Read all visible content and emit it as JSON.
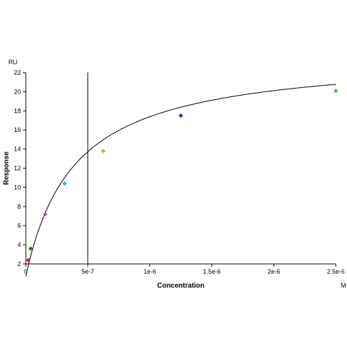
{
  "chart_data": {
    "type": "scatter",
    "xlabel": "Concentration",
    "ylabel": "Response",
    "x_unit": "M",
    "y_unit": "RU",
    "xlim": [
      0,
      2.5e-06
    ],
    "ylim": [
      2,
      22
    ],
    "x_ticks": [
      {
        "value": 0,
        "label": "0"
      },
      {
        "value": 5e-07,
        "label": "5e-7"
      },
      {
        "value": 1e-06,
        "label": "1e-6"
      },
      {
        "value": 1.5e-06,
        "label": "1.5e-6"
      },
      {
        "value": 2e-06,
        "label": "2e-6"
      },
      {
        "value": 2.5e-06,
        "label": "2.5e-6"
      }
    ],
    "y_ticks": [
      {
        "value": 2,
        "label": "2"
      },
      {
        "value": 4,
        "label": "4"
      },
      {
        "value": 6,
        "label": "6"
      },
      {
        "value": 8,
        "label": "8"
      },
      {
        "value": 10,
        "label": "10"
      },
      {
        "value": 12,
        "label": "12"
      },
      {
        "value": 14,
        "label": "14"
      },
      {
        "value": 16,
        "label": "16"
      },
      {
        "value": 18,
        "label": "18"
      },
      {
        "value": 20,
        "label": "20"
      },
      {
        "value": 22,
        "label": "22"
      }
    ],
    "points": [
      {
        "x": 1.95e-08,
        "y": 2.4,
        "color": "#e0201b"
      },
      {
        "x": 3.9e-08,
        "y": 3.6,
        "color": "#1a7a1a"
      },
      {
        "x": 1.5625e-07,
        "y": 7.2,
        "color": "#d63fd6"
      },
      {
        "x": 3.125e-07,
        "y": 10.4,
        "color": "#2bbcd6"
      },
      {
        "x": 6.25e-07,
        "y": 13.8,
        "color": "#e0a040"
      },
      {
        "x": 1.25e-06,
        "y": 17.5,
        "color": "#6a1a8a"
      },
      {
        "x": 2.5e-06,
        "y": 20.1,
        "color": "#4ac04a"
      }
    ],
    "fit_curve": {
      "model": "langmuir",
      "rmax": 23.2,
      "kd": 3.9e-07,
      "offset": 0.7
    },
    "vertical_line_x": 5e-07,
    "grid": false,
    "legend": "none"
  }
}
